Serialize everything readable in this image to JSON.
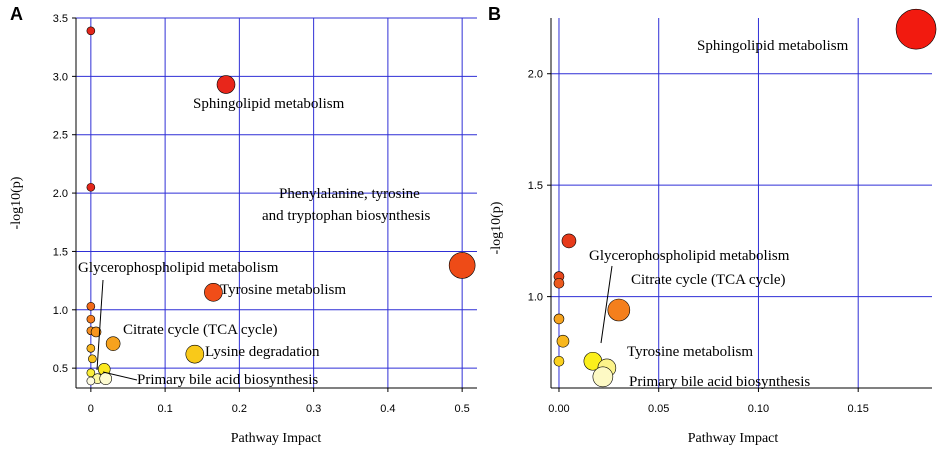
{
  "chart_data": [
    {
      "panel_label": "A",
      "type": "scatter",
      "xlabel": "Pathway Impact",
      "ylabel": "-log10(p)",
      "xlim": [
        -0.02,
        0.52
      ],
      "ylim": [
        0.33,
        3.5
      ],
      "xticks": [
        0,
        0.1,
        0.2,
        0.3,
        0.4,
        0.5
      ],
      "xtick_labels": [
        "0",
        "0.1",
        "0.2",
        "0.3",
        "0.4",
        "0.5"
      ],
      "yticks": [
        0.5,
        1.0,
        1.5,
        2.0,
        2.5,
        3.0,
        3.5
      ],
      "ytick_labels": [
        "0.5",
        "1.0",
        "1.5",
        "2.0",
        "2.5",
        "3.0",
        "3.5"
      ],
      "points": [
        {
          "x": 0.0,
          "y": 3.39,
          "size": 4,
          "color": "#e3261b"
        },
        {
          "x": 0.182,
          "y": 2.93,
          "size": 9,
          "color": "#e8261b"
        },
        {
          "x": 0.0,
          "y": 2.05,
          "size": 4,
          "color": "#e3261b"
        },
        {
          "x": 0.5,
          "y": 1.38,
          "size": 13,
          "color": "#ee4b17"
        },
        {
          "x": 0.165,
          "y": 1.15,
          "size": 9,
          "color": "#f04d18"
        },
        {
          "x": 0.0,
          "y": 1.03,
          "size": 4,
          "color": "#f26a1a"
        },
        {
          "x": 0.0,
          "y": 0.92,
          "size": 4,
          "color": "#f57c1e"
        },
        {
          "x": 0.0,
          "y": 0.82,
          "size": 4,
          "color": "#f78e22"
        },
        {
          "x": 0.007,
          "y": 0.81,
          "size": 5,
          "color": "#f8961e"
        },
        {
          "x": 0.03,
          "y": 0.71,
          "size": 7,
          "color": "#f6a21e"
        },
        {
          "x": 0.0,
          "y": 0.67,
          "size": 4,
          "color": "#f8b41e"
        },
        {
          "x": 0.002,
          "y": 0.58,
          "size": 4,
          "color": "#f9c31d"
        },
        {
          "x": 0.14,
          "y": 0.62,
          "size": 9,
          "color": "#f9c919"
        },
        {
          "x": 0.018,
          "y": 0.49,
          "size": 6,
          "color": "#fbe81e"
        },
        {
          "x": 0.0,
          "y": 0.46,
          "size": 4,
          "color": "#fbee3a"
        },
        {
          "x": 0.009,
          "y": 0.41,
          "size": 5,
          "color": "#fcf8a4"
        },
        {
          "x": 0.02,
          "y": 0.41,
          "size": 6,
          "color": "#fdfbd0"
        },
        {
          "x": 0.0,
          "y": 0.39,
          "size": 4,
          "color": "#fdfbe0"
        }
      ],
      "annotations": [
        {
          "lines": [
            "Sphingolipid metabolism"
          ]
        },
        {
          "lines": [
            "Phenylalanine, tyrosine",
            "and tryptophan biosynthesis"
          ]
        },
        {
          "lines": [
            "Glycerophospholipid metabolism"
          ]
        },
        {
          "lines": [
            "Tyrosine metabolism"
          ]
        },
        {
          "lines": [
            "Citrate cycle (TCA cycle)"
          ]
        },
        {
          "lines": [
            "Lysine degradation"
          ]
        },
        {
          "lines": [
            "Primary bile acid biosynthesis"
          ]
        }
      ]
    },
    {
      "panel_label": "B",
      "type": "scatter",
      "xlabel": "Pathway Impact",
      "ylabel": "-log10(p)",
      "xlim": [
        -0.004,
        0.187
      ],
      "ylim": [
        0.59,
        2.25
      ],
      "xticks": [
        0,
        0.05,
        0.1,
        0.15
      ],
      "xtick_labels": [
        "0.00",
        "0.05",
        "0.10",
        "0.15"
      ],
      "yticks": [
        1.0,
        1.5,
        2.0
      ],
      "ytick_labels": [
        "1.0",
        "1.5",
        "2.0"
      ],
      "points": [
        {
          "x": 0.179,
          "y": 2.2,
          "size": 20,
          "color": "#f21a0f"
        },
        {
          "x": 0.005,
          "y": 1.25,
          "size": 7,
          "color": "#e63a1a"
        },
        {
          "x": 0.0,
          "y": 1.09,
          "size": 5,
          "color": "#e8471c"
        },
        {
          "x": 0.0,
          "y": 1.06,
          "size": 5,
          "color": "#ec5a1e"
        },
        {
          "x": 0.03,
          "y": 0.94,
          "size": 11,
          "color": "#f47f1c"
        },
        {
          "x": 0.0,
          "y": 0.9,
          "size": 5,
          "color": "#f6a31e"
        },
        {
          "x": 0.002,
          "y": 0.8,
          "size": 6,
          "color": "#f8b71e"
        },
        {
          "x": 0.0,
          "y": 0.71,
          "size": 5,
          "color": "#fbd11e"
        },
        {
          "x": 0.017,
          "y": 0.71,
          "size": 9,
          "color": "#fbef1c"
        },
        {
          "x": 0.024,
          "y": 0.68,
          "size": 9,
          "color": "#fcf38a"
        },
        {
          "x": 0.022,
          "y": 0.64,
          "size": 10,
          "color": "#fdf9c4"
        }
      ],
      "annotations": [
        {
          "lines": [
            "Sphingolipid metabolism"
          ]
        },
        {
          "lines": [
            "Glycerophospholipid metabolism"
          ]
        },
        {
          "lines": [
            "Citrate cycle (TCA cycle)"
          ]
        },
        {
          "lines": [
            "Tyrosine metabolism"
          ]
        },
        {
          "lines": [
            "Primary bile acid biosynthesis"
          ]
        }
      ]
    }
  ]
}
